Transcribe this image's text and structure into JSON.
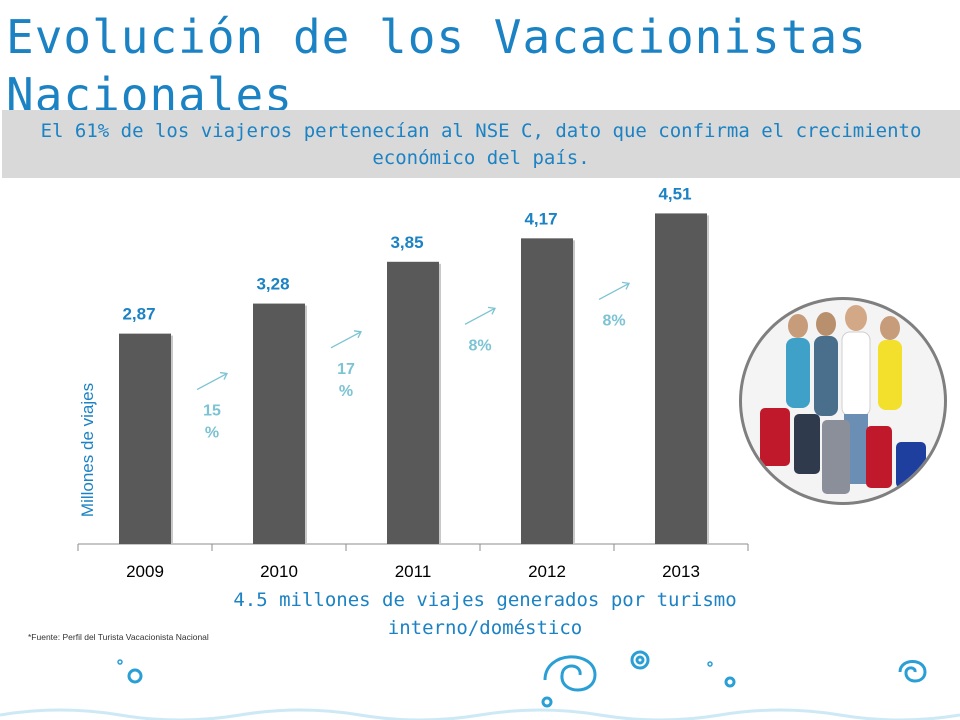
{
  "title": "Evolución de los Vacacionistas Nacionales",
  "banner": "El 61% de los viajeros pertenecían al NSE C, dato que confirma el crecimiento económico del país.",
  "subtitle": "4.5 millones de viajes generados por turismo interno/doméstico",
  "source": "*Fuente: Perfil del Turista Vacacionista Nacional",
  "colors": {
    "accent": "#1b82c4",
    "bar": "#595959",
    "growth": "#7cc3d3",
    "banner_bg": "#d9d9d9"
  },
  "chart_data": {
    "type": "bar",
    "title": "",
    "xlabel": "",
    "ylabel": "Millones de viajes",
    "categories": [
      "2009",
      "2010",
      "2011",
      "2012",
      "2013"
    ],
    "values": [
      2.87,
      3.28,
      3.85,
      4.17,
      4.51
    ],
    "data_labels": [
      "2,87",
      "3,28",
      "3,85",
      "4,17",
      "4,51"
    ],
    "growth_labels": [
      "15 %",
      "17 %",
      "8%",
      "8%"
    ],
    "ylim": [
      0,
      5
    ],
    "grid": false,
    "legend": "none"
  },
  "photo_icon": "travelers-with-luggage-photo"
}
